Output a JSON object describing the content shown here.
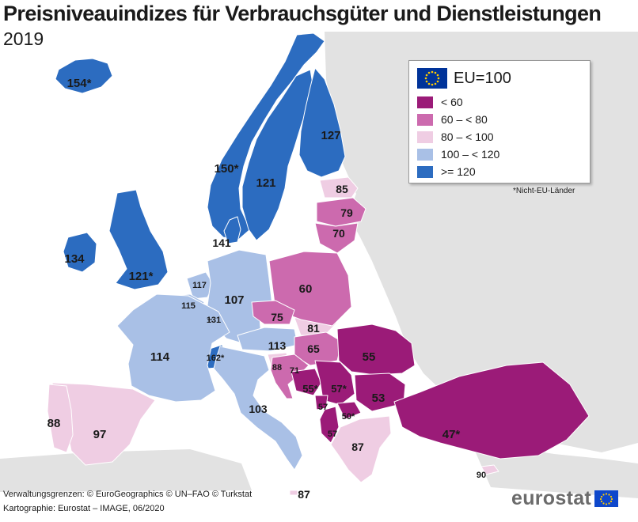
{
  "title": "Preisniveauindizes für Verbrauchsgüter und Dienstleistungen",
  "subtitle": "2019",
  "legend": {
    "title": "EU=100",
    "classes": [
      {
        "label": "< 60",
        "color": "#9b1b78"
      },
      {
        "label": "60 – < 80",
        "color": "#cc6aae"
      },
      {
        "label": "80 – < 100",
        "color": "#efcde3"
      },
      {
        "label": "100 – < 120",
        "color": "#a9c0e6"
      },
      {
        "label": ">= 120",
        "color": "#2c6cc0"
      }
    ],
    "note": "*Nicht-EU-Länder"
  },
  "colors": {
    "sea": "#ffffff",
    "outside_land": "#e2e2e2",
    "border": "#ffffff",
    "eu_flag": "#003399",
    "eu_stars": "#ffcc00"
  },
  "regions": [
    {
      "id": "iceland",
      "value_label": "154*",
      "class": 4
    },
    {
      "id": "norway",
      "value_label": "150*",
      "class": 4
    },
    {
      "id": "sweden",
      "value_label": "121",
      "class": 4
    },
    {
      "id": "finland",
      "value_label": "127",
      "class": 4
    },
    {
      "id": "denmark",
      "value_label": "141",
      "class": 4
    },
    {
      "id": "ireland",
      "value_label": "134",
      "class": 4
    },
    {
      "id": "united-kingdom",
      "value_label": "121*",
      "class": 4
    },
    {
      "id": "switzerland",
      "value_label": "162*",
      "class": 4
    },
    {
      "id": "luxembourg",
      "value_label": "131",
      "class": 4
    },
    {
      "id": "netherlands",
      "value_label": "117",
      "class": 3
    },
    {
      "id": "belgium",
      "value_label": "115",
      "class": 3
    },
    {
      "id": "germany",
      "value_label": "107",
      "class": 3
    },
    {
      "id": "france",
      "value_label": "114",
      "class": 3
    },
    {
      "id": "austria",
      "value_label": "113",
      "class": 3
    },
    {
      "id": "italy",
      "value_label": "103",
      "class": 3
    },
    {
      "id": "estonia",
      "value_label": "85",
      "class": 2
    },
    {
      "id": "slovenia",
      "value_label": "88",
      "class": 2
    },
    {
      "id": "greece",
      "value_label": "87",
      "class": 2
    },
    {
      "id": "malta",
      "value_label": "87",
      "class": 2
    },
    {
      "id": "cyprus",
      "value_label": "90",
      "class": 2
    },
    {
      "id": "slovakia",
      "value_label": "81",
      "class": 2
    },
    {
      "id": "spain",
      "value_label": "97",
      "class": 2
    },
    {
      "id": "portugal",
      "value_label": "88",
      "class": 2
    },
    {
      "id": "latvia",
      "value_label": "79",
      "class": 1
    },
    {
      "id": "lithuania",
      "value_label": "70",
      "class": 1
    },
    {
      "id": "poland",
      "value_label": "60",
      "class": 1
    },
    {
      "id": "czechia",
      "value_label": "75",
      "class": 1
    },
    {
      "id": "hungary",
      "value_label": "65",
      "class": 1
    },
    {
      "id": "croatia",
      "value_label": "71",
      "class": 1
    },
    {
      "id": "romania",
      "value_label": "55",
      "class": 0
    },
    {
      "id": "bulgaria",
      "value_label": "53",
      "class": 0
    },
    {
      "id": "bosnia-herzegovina",
      "value_label": "55*",
      "class": 0
    },
    {
      "id": "serbia",
      "value_label": "57*",
      "class": 0
    },
    {
      "id": "montenegro",
      "value_label": "57",
      "class": 0
    },
    {
      "id": "north-macedonia",
      "value_label": "50*",
      "class": 0
    },
    {
      "id": "albania",
      "value_label": "57",
      "class": 0
    },
    {
      "id": "turkey",
      "value_label": "47*",
      "class": 0
    }
  ],
  "credits": [
    "Verwaltungsgrenzen: © EuroGeographics © UN–FAO © Turkstat",
    "Kartographie: Eurostat – IMAGE, 06/2020"
  ],
  "brand": "eurostat"
}
